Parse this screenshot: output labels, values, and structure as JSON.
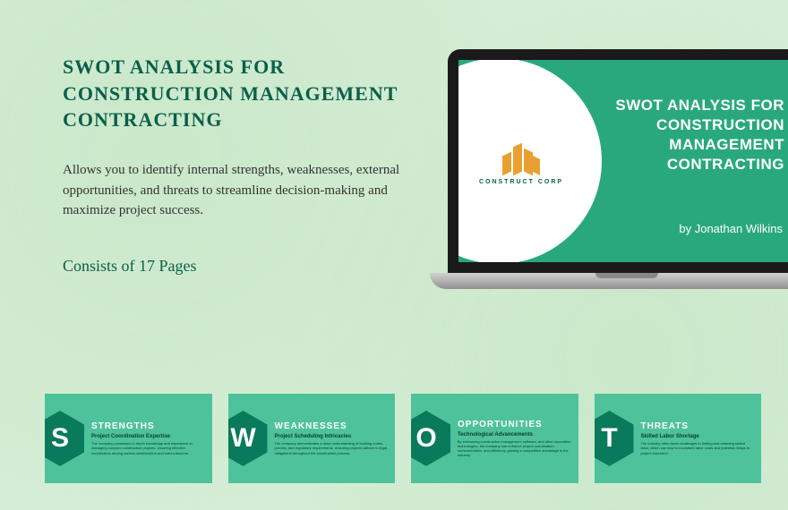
{
  "title": "SWOT ANALYSIS FOR CONSTRUCTION MANAGEMENT CONTRACTING",
  "description": "Allows you to identify internal strengths, weaknesses, external opportunities, and threats to streamline decision-making and maximize project success.",
  "pages_label": "Consists of 17 Pages",
  "laptop": {
    "logo_text": "CONSTRUCT CORP",
    "title": "SWOT ANALYSIS FOR CONSTRUCTION MANAGEMENT CONTRACTING",
    "author": "by Jonathan Wilkins",
    "bg_color": "#29a87e",
    "logo_color": "#e8a030"
  },
  "cards": [
    {
      "letter": "S",
      "title": "STRENGTHS",
      "subtitle": "Project Coordination Expertise",
      "body": "The company possesses in-depth knowledge and experience in managing complex construction projects, ensuring effective coordination among various stakeholders and subcontractors."
    },
    {
      "letter": "W",
      "title": "WEAKNESSES",
      "subtitle": "Project Scheduling Intricacies",
      "body": "The company demonstrates a deep understanding of building codes, permits, and regulatory requirements, ensuring projects adhere to legal obligations throughout the construction process."
    },
    {
      "letter": "O",
      "title": "OPPORTUNITIES",
      "subtitle": "Technological Advancements",
      "body": "By embracing construction management software, and other innovative technologies, the company can enhance project coordination, communication, and efficiency, gaining a competitive advantage in the industry."
    },
    {
      "letter": "T",
      "title": "THREATS",
      "subtitle": "Skilled Labor Shortage",
      "body": "The industry often faces challenges in finding and retaining skilled labor, which can lead to increased labor costs and potential delays in project execution."
    }
  ],
  "colors": {
    "background": "#d4edd4",
    "primary_text": "#0a5f4a",
    "card_bg": "#4ec29b",
    "hex_bg": "#0a7a5c"
  }
}
